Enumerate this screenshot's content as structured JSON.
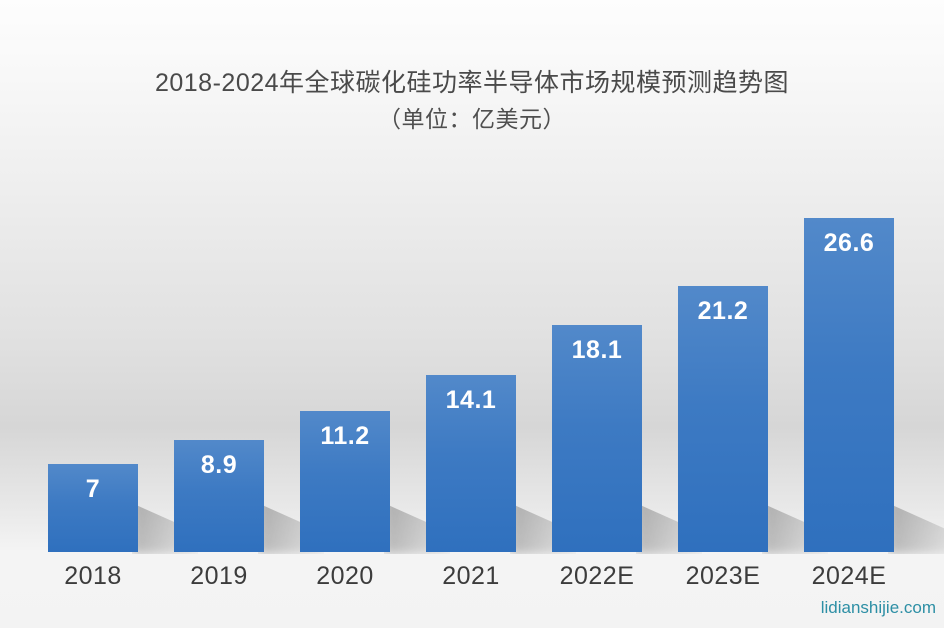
{
  "watermark": "lidianshijie.com",
  "chart_data": {
    "type": "bar",
    "title": "2018-2024年全球碳化硅功率半导体市场规模预测趋势图",
    "subtitle": "（单位：亿美元）",
    "unit": "亿美元",
    "categories": [
      "2018",
      "2019",
      "2020",
      "2021",
      "2022E",
      "2023E",
      "2024E"
    ],
    "values": [
      7,
      8.9,
      11.2,
      14.1,
      18.1,
      21.2,
      26.6
    ],
    "value_labels": [
      "7",
      "8.9",
      "11.2",
      "14.1",
      "18.1",
      "21.2",
      "26.6"
    ],
    "ylim": [
      0,
      28
    ],
    "grid": false,
    "legend_position": "none",
    "colors": {
      "bar_top": "#5289ca",
      "bar_mid": "#3d7ac3",
      "bar_bottom": "#2f70be",
      "value_label": "#ffffff",
      "axis_label": "#3c3c3c",
      "title": "#4a4a4a",
      "watermark": "#2d8fa5"
    }
  }
}
